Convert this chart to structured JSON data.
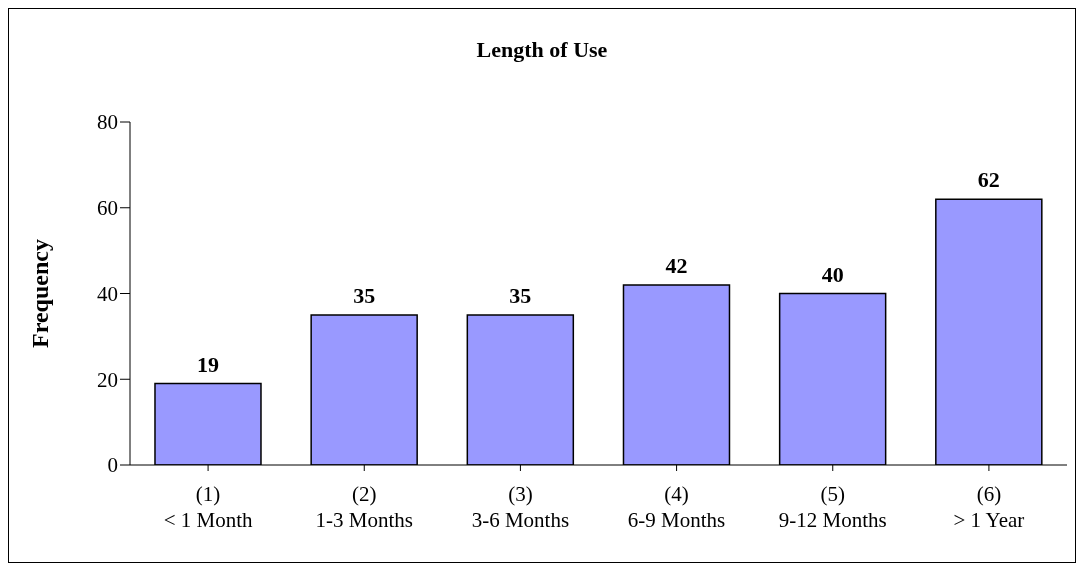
{
  "chart_data": {
    "type": "bar",
    "title": "Length of Use",
    "ylabel": "Frequency",
    "categories": [
      "(1)\n< 1 Month",
      "(2)\n1-3 Months",
      "(3)\n3-6 Months",
      "(4)\n6-9 Months",
      "(5)\n9-12 Months",
      "(6)\n> 1 Year"
    ],
    "values": [
      19,
      35,
      35,
      42,
      40,
      62
    ],
    "color": "#9999ff",
    "ylim": [
      0,
      80
    ],
    "yticks": [
      0,
      20,
      40,
      60,
      80
    ],
    "data_labels": true,
    "grid": false,
    "legend": false
  }
}
